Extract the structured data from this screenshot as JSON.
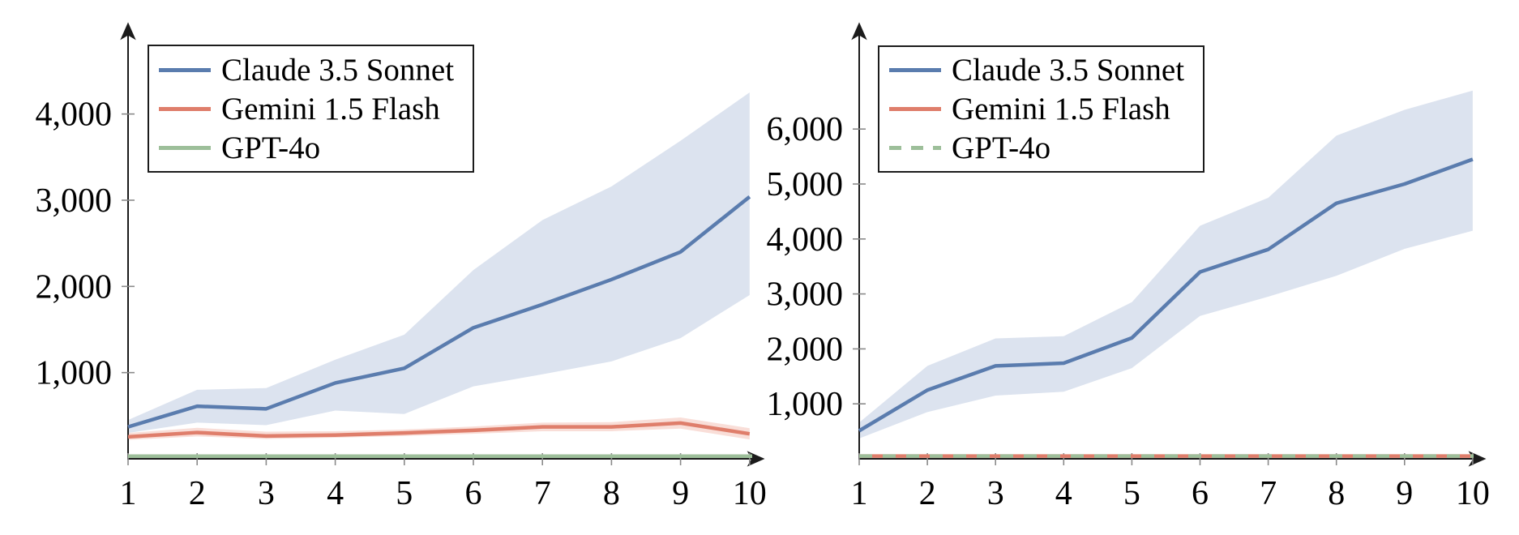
{
  "chart_data": [
    {
      "id": "left",
      "type": "line",
      "title": "",
      "xlabel": "",
      "ylabel": "",
      "x": [
        1,
        2,
        3,
        4,
        5,
        6,
        7,
        8,
        9,
        10
      ],
      "x_tick_labels": [
        "1",
        "2",
        "3",
        "4",
        "5",
        "6",
        "7",
        "8",
        "9",
        "10"
      ],
      "y_ticks": [
        {
          "v": 1000,
          "label": "1,000"
        },
        {
          "v": 2000,
          "label": "2,000"
        },
        {
          "v": 3000,
          "label": "3,000"
        },
        {
          "v": 4000,
          "label": "4,000"
        }
      ],
      "xlim": [
        1,
        10
      ],
      "ylim": [
        0,
        5000
      ],
      "grid": false,
      "legend_position": "top-left",
      "legend": [
        {
          "label": "Claude 3.5 Sonnet",
          "color": "#5a7cae",
          "dash": false
        },
        {
          "label": "Gemini 1.5 Flash",
          "color": "#df7e6b",
          "dash": false
        },
        {
          "label": "GPT-4o",
          "color": "#9dbf9a",
          "dash": false
        }
      ],
      "series": [
        {
          "name": "Claude 3.5 Sonnet",
          "color": "#5a7cae",
          "dash": false,
          "values": [
            370,
            610,
            580,
            880,
            1050,
            1520,
            1790,
            2080,
            2400,
            3040
          ],
          "band_lower": [
            300,
            420,
            390,
            560,
            520,
            840,
            980,
            1130,
            1400,
            1900
          ],
          "band_upper": [
            450,
            800,
            820,
            1150,
            1440,
            2190,
            2770,
            3160,
            3690,
            4250
          ],
          "band_color": "#dce3ef"
        },
        {
          "name": "Gemini 1.5 Flash",
          "color": "#df7e6b",
          "dash": false,
          "values": [
            255,
            305,
            265,
            275,
            300,
            330,
            370,
            370,
            415,
            290
          ],
          "band_lower": [
            220,
            260,
            230,
            245,
            265,
            290,
            320,
            320,
            350,
            225
          ],
          "band_upper": [
            300,
            360,
            315,
            320,
            340,
            375,
            420,
            425,
            480,
            355
          ],
          "band_color": "#f9ded8"
        },
        {
          "name": "GPT-4o",
          "color": "#9dbf9a",
          "dash": false,
          "extend_to_axis_end": true,
          "values": [
            30,
            30,
            30,
            30,
            30,
            30,
            30,
            30,
            30,
            30
          ]
        }
      ]
    },
    {
      "id": "right",
      "type": "line",
      "title": "",
      "xlabel": "",
      "ylabel": "",
      "x": [
        1,
        2,
        3,
        4,
        5,
        6,
        7,
        8,
        9,
        10
      ],
      "x_tick_labels": [
        "1",
        "2",
        "3",
        "4",
        "5",
        "6",
        "7",
        "8",
        "9",
        "10"
      ],
      "y_ticks": [
        {
          "v": 1000,
          "label": "1,000"
        },
        {
          "v": 2000,
          "label": "2,000"
        },
        {
          "v": 3000,
          "label": "3,000"
        },
        {
          "v": 4000,
          "label": "4,000"
        },
        {
          "v": 5000,
          "label": "5,000"
        },
        {
          "v": 6000,
          "label": "6,000"
        }
      ],
      "xlim": [
        1,
        10
      ],
      "ylim": [
        0,
        7800
      ],
      "grid": false,
      "legend_position": "top-left",
      "legend": [
        {
          "label": "Claude 3.5 Sonnet",
          "color": "#5a7cae",
          "dash": false
        },
        {
          "label": "Gemini 1.5 Flash",
          "color": "#df7e6b",
          "dash": false
        },
        {
          "label": "GPT-4o",
          "color": "#9dbf9a",
          "dash": true
        }
      ],
      "series": [
        {
          "name": "Claude 3.5 Sonnet",
          "color": "#5a7cae",
          "dash": false,
          "values": [
            510,
            1250,
            1690,
            1740,
            2200,
            3400,
            3810,
            4650,
            5000,
            5450
          ],
          "band_lower": [
            370,
            850,
            1150,
            1220,
            1650,
            2600,
            2950,
            3330,
            3820,
            4150
          ],
          "band_upper": [
            660,
            1690,
            2190,
            2230,
            2850,
            4240,
            4750,
            5880,
            6350,
            6700
          ],
          "band_color": "#dce3ef"
        },
        {
          "name": "Gemini 1.5 Flash",
          "color": "#df7e6b",
          "dash": false,
          "extend_to_axis_end": true,
          "values": [
            50,
            50,
            50,
            50,
            50,
            50,
            50,
            50,
            50,
            50
          ]
        },
        {
          "name": "GPT-4o",
          "color": "#9dbf9a",
          "dash": true,
          "extend_to_axis_end": true,
          "values": [
            50,
            50,
            50,
            50,
            50,
            50,
            50,
            50,
            50,
            50
          ]
        }
      ]
    }
  ]
}
